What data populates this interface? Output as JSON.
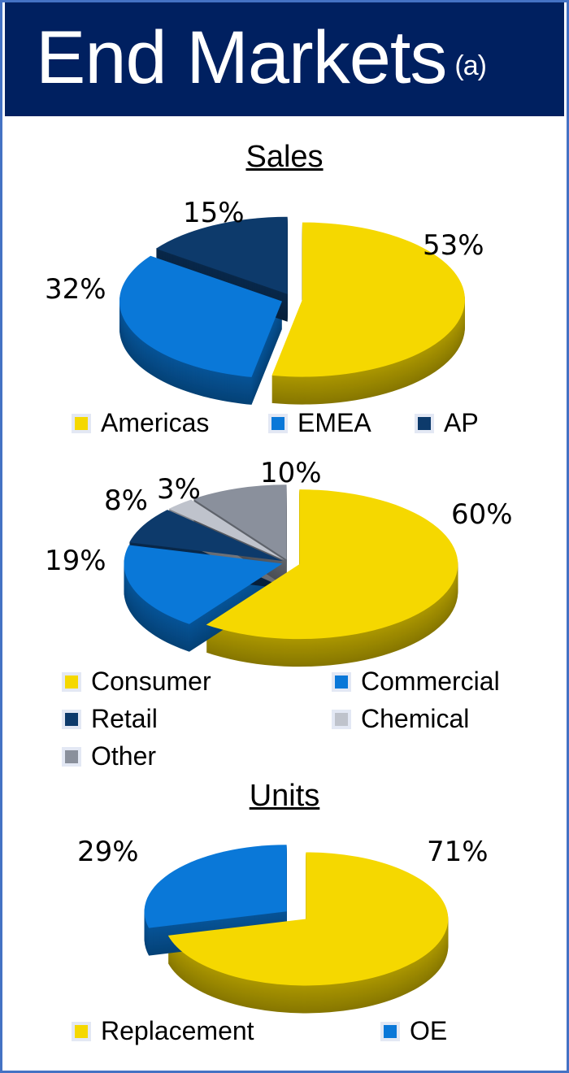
{
  "title": "End Markets",
  "title_note": "(a)",
  "chart_data": [
    {
      "type": "pie",
      "title": "Sales",
      "categories": [
        "Americas",
        "EMEA",
        "AP"
      ],
      "values": [
        53,
        32,
        15
      ],
      "labels": [
        "53%",
        "32%",
        "15%"
      ],
      "colors": [
        "#F5D800",
        "#0A78D8",
        "#0D3A6B"
      ],
      "legend": "bottom"
    },
    {
      "type": "pie",
      "title": "",
      "categories": [
        "Consumer",
        "Commercial",
        "Retail",
        "Chemical",
        "Other"
      ],
      "values": [
        60,
        19,
        8,
        3,
        10
      ],
      "labels": [
        "60%",
        "19%",
        "8%",
        "3%",
        "10%"
      ],
      "colors": [
        "#F5D800",
        "#0A78D8",
        "#0D3A6B",
        "#BFC3CC",
        "#8A909C"
      ],
      "legend": "bottom"
    },
    {
      "type": "pie",
      "title": "Units",
      "categories": [
        "Replacement",
        "OE"
      ],
      "values": [
        71,
        29
      ],
      "labels": [
        "71%",
        "29%"
      ],
      "colors": [
        "#F5D800",
        "#0A78D8"
      ],
      "legend": "bottom"
    }
  ]
}
